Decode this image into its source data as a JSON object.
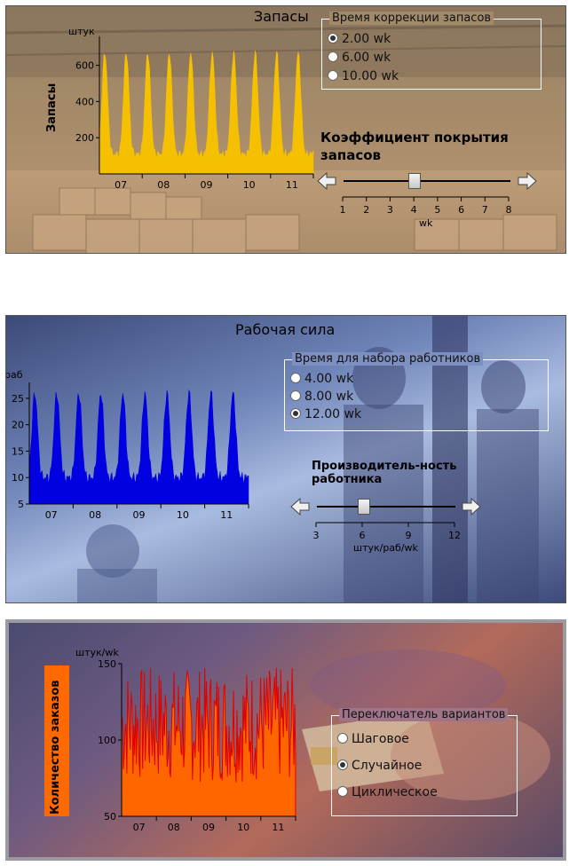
{
  "inventory_panel": {
    "title": "Запасы",
    "y_axis_label": "Запасы",
    "unit": "штук",
    "y_ticks": [
      "200",
      "400",
      "600"
    ],
    "x_ticks": [
      "07",
      "08",
      "09",
      "10",
      "11"
    ],
    "correction_group": {
      "legend": "Время коррекции запасов",
      "options": [
        "2.00 wk",
        "6.00 wk",
        "10.00 wk"
      ],
      "selected": "2.00 wk"
    },
    "coverage_slider": {
      "label": "Коэффициент покрытия запасов",
      "ticks": [
        "1",
        "2",
        "3",
        "4",
        "5",
        "6",
        "7",
        "8"
      ],
      "unit": "wk",
      "value": 4
    },
    "fill_color": "#f5c000"
  },
  "workforce_panel": {
    "title": "Рабочая сила",
    "unit": "раб",
    "y_ticks": [
      "5",
      "10",
      "15",
      "20",
      "25"
    ],
    "x_ticks": [
      "07",
      "08",
      "09",
      "10",
      "11"
    ],
    "hire_group": {
      "legend": "Время для набора работников",
      "options": [
        "4.00 wk",
        "8.00 wk",
        "12.00 wk"
      ],
      "selected": "12.00 wk"
    },
    "productivity_slider": {
      "label": "Производитель-ность работника",
      "ticks": [
        "3",
        "6",
        "9",
        "12"
      ],
      "unit": "штук/раб/wk",
      "value": 6
    },
    "fill_color": "#0000e0"
  },
  "orders_panel": {
    "y_axis_label": "Количество заказов",
    "unit": "штук/wk",
    "y_ticks": [
      "50",
      "100",
      "150"
    ],
    "x_ticks": [
      "07",
      "08",
      "09",
      "10",
      "11"
    ],
    "switch_group": {
      "legend": "Переключатель вариантов",
      "options": [
        "Шаговое",
        "Случайное",
        "Циклическое"
      ],
      "selected": "Случайное"
    },
    "fill_color": "#ff6600",
    "line_color": "#e00000"
  }
}
